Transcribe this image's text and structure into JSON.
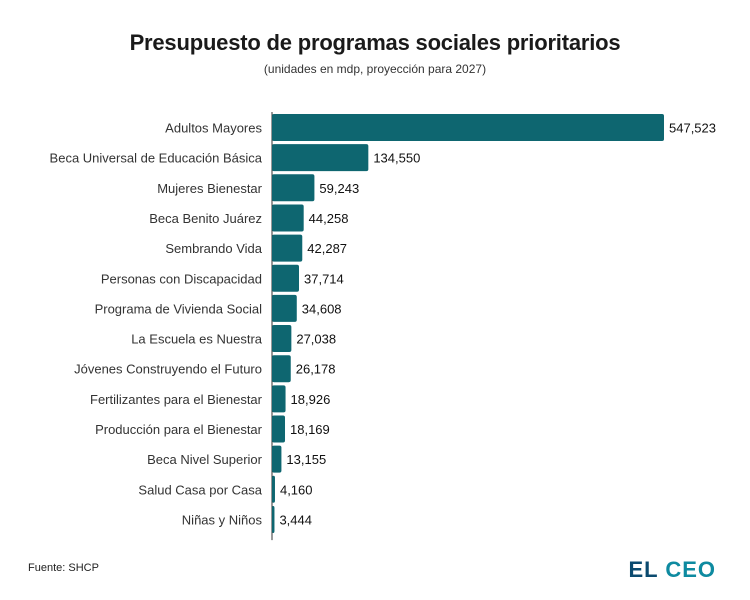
{
  "title": "Presupuesto de programas sociales prioritarios",
  "subtitle": "(unidades en mdp, proyección para 2027)",
  "source": "Fuente: SHCP",
  "logo": {
    "word1": "EL",
    "word2": "CEO"
  },
  "colors": {
    "bar": "#0e6670",
    "axis": "#333333"
  },
  "chart_data": {
    "type": "bar",
    "orientation": "horizontal",
    "title": "Presupuesto de programas sociales prioritarios",
    "subtitle": "(unidades en mdp, proyección para 2027)",
    "xlabel": "",
    "ylabel": "",
    "grid": false,
    "categories": [
      "Adultos Mayores",
      "Beca Universal de Educación Básica",
      "Mujeres Bienestar",
      "Beca Benito Juárez",
      "Sembrando Vida",
      "Personas con Discapacidad",
      "Programa de Vivienda Social",
      "La Escuela es Nuestra",
      "Jóvenes Construyendo el Futuro",
      "Fertilizantes para el Bienestar",
      "Producción para el Bienestar",
      "Beca Nivel Superior",
      "Salud Casa por Casa",
      "Niñas y Niños"
    ],
    "values": [
      547523,
      134550,
      59243,
      44258,
      42287,
      37714,
      34608,
      27038,
      26178,
      18926,
      18169,
      13155,
      4160,
      3444
    ],
    "value_labels": [
      "547,523",
      "134,550",
      "59,243",
      "44,258",
      "42,287",
      "37,714",
      "34,608",
      "27,038",
      "26,178",
      "18,926",
      "18,169",
      "13,155",
      "4,160",
      "3,444"
    ]
  }
}
